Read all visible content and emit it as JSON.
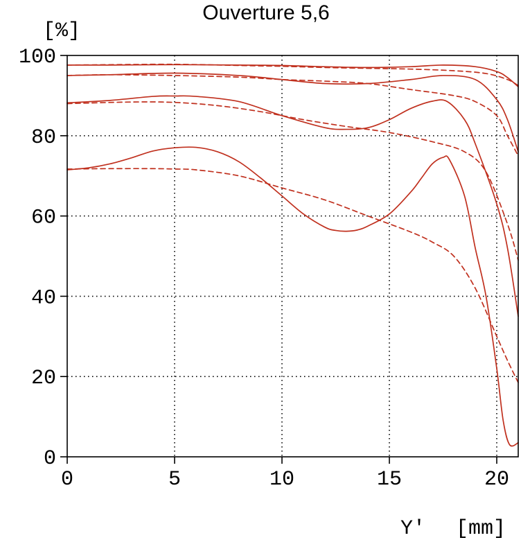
{
  "chart_data": {
    "type": "line",
    "title": "Ouverture 5,6",
    "ylabel": "[%]",
    "xlabel": "Y'",
    "xunit": "[mm]",
    "xlim": [
      0,
      21
    ],
    "ylim": [
      0,
      100
    ],
    "xticks": [
      0,
      5,
      10,
      15,
      20
    ],
    "yticks": [
      0,
      20,
      40,
      60,
      80,
      100
    ],
    "xtick_labels": [
      "0",
      "5",
      "10",
      "15",
      "20"
    ],
    "ytick_labels": [
      "0",
      "20",
      "40",
      "60",
      "80",
      "100"
    ],
    "grid": true,
    "line_color": "#c0301e",
    "series": [
      {
        "name": "solid-1",
        "style": "solid",
        "x": [
          0,
          2,
          5,
          8,
          10,
          12,
          14,
          16,
          17.5,
          19,
          20,
          20.5,
          21
        ],
        "y": [
          97.6,
          97.6,
          97.7,
          97.6,
          97.5,
          97.2,
          97,
          97.2,
          97.6,
          97.2,
          96,
          94.5,
          92.2
        ]
      },
      {
        "name": "dashed-1",
        "style": "dashed",
        "x": [
          0,
          2,
          5,
          8,
          10,
          12,
          14,
          16,
          18,
          19.5,
          20.5,
          21
        ],
        "y": [
          97.6,
          97.7,
          97.8,
          97.5,
          97.3,
          97,
          96.8,
          96.6,
          96.2,
          95.5,
          94,
          92.5
        ]
      },
      {
        "name": "solid-2",
        "style": "solid",
        "x": [
          0,
          2,
          5,
          8,
          10,
          12,
          14,
          16,
          17.5,
          19,
          20,
          20.5,
          21
        ],
        "y": [
          95,
          95.2,
          95.6,
          95,
          94,
          93,
          93,
          94,
          95,
          94,
          89,
          84,
          76
        ]
      },
      {
        "name": "dashed-2",
        "style": "dashed",
        "x": [
          0,
          2,
          5,
          8,
          10,
          12,
          14,
          16,
          18,
          19,
          20,
          20.5,
          21
        ],
        "y": [
          95,
          95.2,
          95,
          94.6,
          94,
          93.6,
          93,
          91.5,
          90,
          88.5,
          85,
          80,
          75
        ]
      },
      {
        "name": "solid-3",
        "style": "solid",
        "x": [
          0,
          2,
          4,
          5,
          6,
          8,
          10,
          12,
          13,
          14,
          15,
          16,
          17,
          17.7,
          18.5,
          19,
          20,
          20.5,
          21
        ],
        "y": [
          88.2,
          88.8,
          89.8,
          89.9,
          89.8,
          88.5,
          85,
          82,
          81.6,
          82,
          84,
          86.8,
          88.6,
          88.5,
          84,
          78,
          63,
          52,
          35
        ]
      },
      {
        "name": "dashed-3",
        "style": "dashed",
        "x": [
          0,
          3,
          5,
          7,
          9,
          11,
          13,
          15,
          17,
          18.5,
          19.5,
          20.5,
          21
        ],
        "y": [
          88,
          88.4,
          88.3,
          87.5,
          86,
          84,
          82.3,
          80.8,
          78.5,
          76,
          71,
          58,
          49
        ]
      },
      {
        "name": "solid-4",
        "style": "solid",
        "x": [
          0,
          1,
          2,
          3,
          4,
          5,
          6,
          7,
          8,
          9,
          10,
          11,
          12,
          12.5,
          13,
          13.5,
          14,
          15,
          16,
          16.5,
          17,
          17.5,
          17.8,
          18.5,
          19,
          19.5,
          20,
          20.3,
          20.6,
          21
        ],
        "y": [
          71.5,
          72,
          73,
          74.5,
          76.2,
          77,
          77.1,
          76,
          73.5,
          69.5,
          65,
          60.5,
          57.2,
          56.4,
          56.2,
          56.5,
          57.5,
          60.5,
          66,
          69.5,
          73,
          74.6,
          74,
          65,
          52,
          40,
          22,
          9,
          3,
          3.5
        ]
      },
      {
        "name": "dashed-4",
        "style": "dashed",
        "x": [
          0,
          2,
          4,
          5,
          6,
          8,
          10,
          12,
          14,
          16,
          17,
          18,
          19,
          20,
          20.5,
          21
        ],
        "y": [
          71.7,
          71.8,
          71.8,
          71.7,
          71.5,
          70,
          67,
          64,
          60,
          56,
          53.5,
          50,
          42,
          30,
          24,
          18.5
        ]
      }
    ]
  }
}
